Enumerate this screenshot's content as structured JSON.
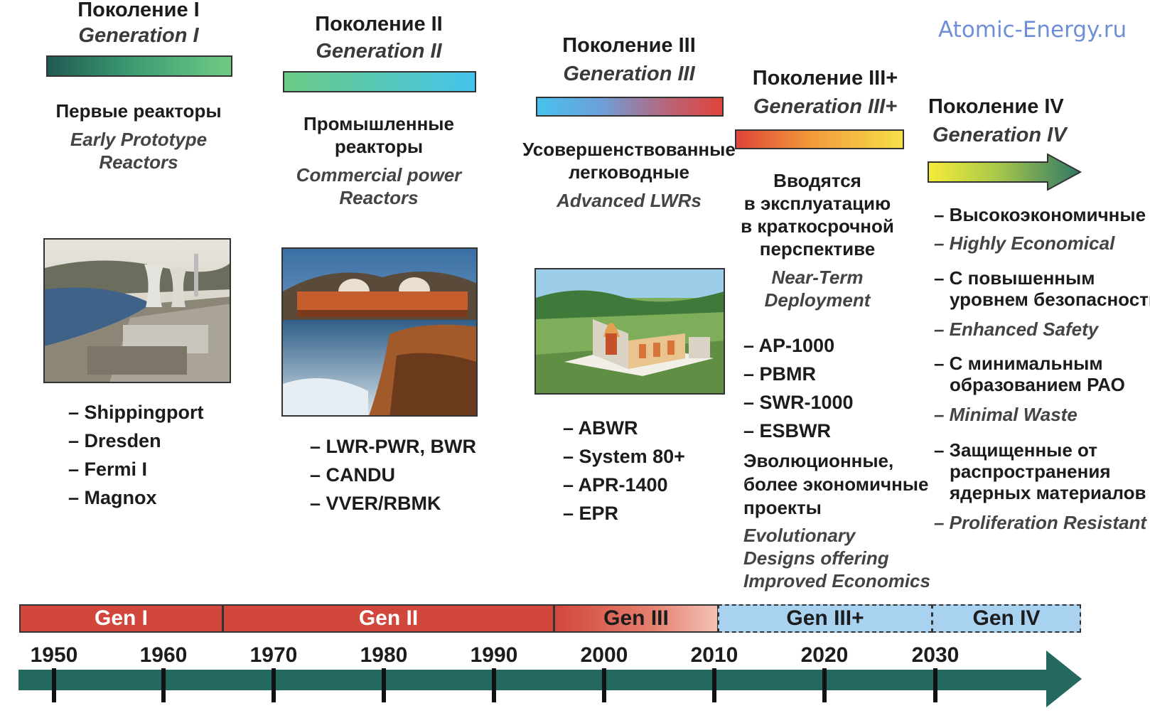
{
  "brand": "Atomic-Energy.ru",
  "generations": [
    {
      "title_ru": "Поколение I",
      "title_en": "Generation I",
      "desc_ru": [
        "Первые реакторы"
      ],
      "desc_en": [
        "Early Prototype",
        "Reactors"
      ],
      "items": [
        "Shippingport",
        "Dresden",
        "Fermi I",
        "Magnox"
      ]
    },
    {
      "title_ru": "Поколение II",
      "title_en": "Generation II",
      "desc_ru": [
        "Промышленные",
        "реакторы"
      ],
      "desc_en": [
        "Commercial power",
        "Reactors"
      ],
      "items": [
        "LWR-PWR, BWR",
        "CANDU",
        "VVER/RBMK"
      ]
    },
    {
      "title_ru": "Поколение III",
      "title_en": "Generation III",
      "desc_ru": [
        "Усовершенствованные",
        "легководные"
      ],
      "desc_en": [
        "Advanced LWRs"
      ],
      "items": [
        "ABWR",
        "System 80+",
        "APR-1400",
        "EPR"
      ]
    },
    {
      "title_ru": "Поколение III+",
      "title_en": "Generation III+",
      "desc_ru": [
        "Вводятся",
        "в эксплуатацию",
        "в краткосрочной",
        "перспективе"
      ],
      "desc_en": [
        "Near-Term",
        "Deployment"
      ],
      "items": [
        "AP-1000",
        "PBMR",
        "SWR-1000",
        "ESBWR"
      ],
      "extra_ru": [
        "Эволюционные,",
        "более экономичные",
        "проекты"
      ],
      "extra_en": [
        "Evolutionary",
        "Designs offering",
        "Improved Economics"
      ]
    },
    {
      "title_ru": "Поколение IV",
      "title_en": "Generation IV",
      "features": [
        {
          "ru": [
            "– Высокоэкономичные"
          ],
          "en": "– Highly  Economical"
        },
        {
          "ru": [
            "– С повышенным",
            "уровнем безопасности"
          ],
          "en": "– Enhanced Safety"
        },
        {
          "ru": [
            "– С минимальным",
            "образованием РАО"
          ],
          "en": "– Minimal Waste"
        },
        {
          "ru": [
            "– Защищенные от",
            "распространения",
            "ядерных материалов"
          ],
          "en": "– Proliferation Resistant"
        }
      ]
    }
  ],
  "timeline": {
    "segments": [
      "Gen I",
      "Gen II",
      "Gen III",
      "Gen III+",
      "Gen IV"
    ],
    "years": [
      "1950",
      "1960",
      "1970",
      "1980",
      "1990",
      "2000",
      "2010",
      "2020",
      "2030"
    ]
  },
  "colors": {
    "timeline_red": "#d2473b",
    "timeline_blue": "#a9d2f0",
    "arrow_teal": "#23695f"
  }
}
